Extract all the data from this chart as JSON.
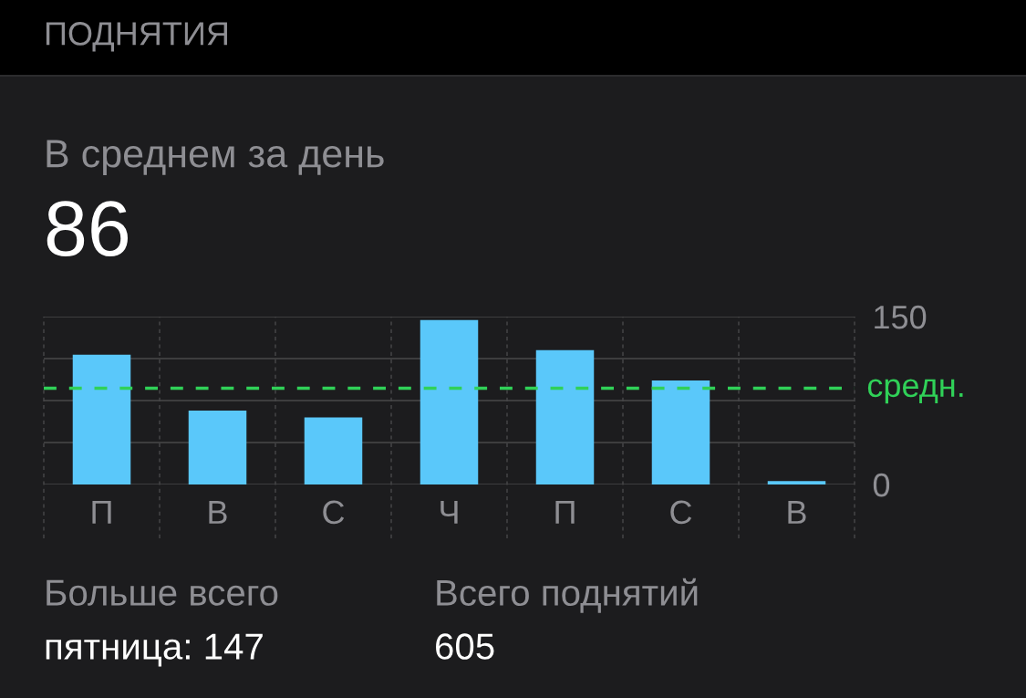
{
  "chart_data": {
    "type": "bar",
    "title": "ПОДНЯТИЯ",
    "subtitle": "В среднем за день",
    "categories": [
      "П",
      "В",
      "С",
      "Ч",
      "П",
      "С",
      "В"
    ],
    "values": [
      116,
      66,
      60,
      147,
      120,
      93,
      3
    ],
    "color": "#5ac8fa",
    "ylim": [
      0,
      150
    ],
    "yticks": [
      0,
      {
        "value": 37.5,
        "label": null
      },
      {
        "value": 75,
        "label": null
      },
      {
        "value": 112.5,
        "label": null
      },
      150
    ],
    "grid": true,
    "ref_lines": [
      {
        "axis": "y",
        "value": 86,
        "label": "средн.",
        "color": "#30d158",
        "line_style": "dashed"
      }
    ],
    "annotations": [
      "86",
      "Больше всего",
      "пятница: 147",
      "Всего поднятий",
      "605"
    ]
  }
}
